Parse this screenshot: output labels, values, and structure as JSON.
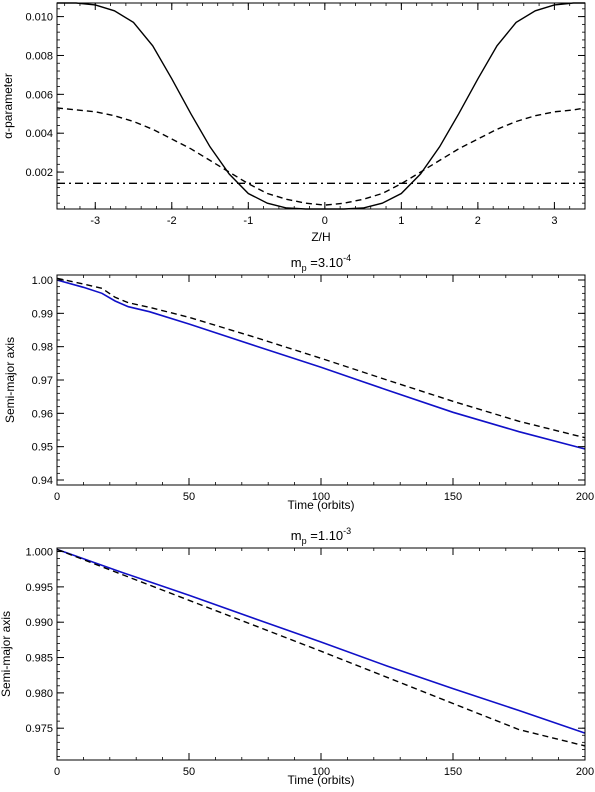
{
  "chart_data": [
    {
      "type": "line",
      "title": "",
      "xlabel": "Z/H",
      "ylabel": "α-parameter",
      "xlim": [
        -3.5,
        3.4
      ],
      "ylim": [
        0.0001,
        0.0107
      ],
      "xticks": [
        -3,
        -2,
        -1,
        0,
        1,
        2,
        3
      ],
      "yticks": [
        0.002,
        0.004,
        0.006,
        0.008,
        0.01
      ],
      "xtick_labels": [
        "-3",
        "-2",
        "-1",
        "0",
        "1",
        "2",
        "3"
      ],
      "ytick_labels": [
        "0.002",
        "0.004",
        "0.006",
        "0.008",
        "0.010"
      ],
      "series": [
        {
          "style": "solid",
          "color": "#000000",
          "x": [
            -3.5,
            -3.25,
            -3.0,
            -2.75,
            -2.5,
            -2.25,
            -2.0,
            -1.75,
            -1.5,
            -1.25,
            -1.0,
            -0.75,
            -0.5,
            -0.25,
            0,
            0.25,
            0.5,
            0.75,
            1.0,
            1.25,
            1.5,
            1.75,
            2.0,
            2.25,
            2.5,
            2.75,
            3.0,
            3.25,
            3.4
          ],
          "y": [
            0.0107,
            0.0107,
            0.0106,
            0.0103,
            0.0097,
            0.0085,
            0.0068,
            0.005,
            0.0033,
            0.0019,
            0.0009,
            0.0004,
            0.00015,
            0.0001,
            0.0001,
            0.0001,
            0.00015,
            0.0004,
            0.0009,
            0.0019,
            0.0033,
            0.005,
            0.0068,
            0.0085,
            0.0097,
            0.0103,
            0.0106,
            0.0107,
            0.0107
          ]
        },
        {
          "style": "dashed",
          "color": "#000000",
          "x": [
            -3.5,
            -3.25,
            -3.0,
            -2.75,
            -2.5,
            -2.25,
            -2.0,
            -1.75,
            -1.5,
            -1.25,
            -1.0,
            -0.75,
            -0.5,
            -0.25,
            0,
            0.25,
            0.5,
            0.75,
            1.0,
            1.25,
            1.5,
            1.75,
            2.0,
            2.25,
            2.5,
            2.75,
            3.0,
            3.25,
            3.4
          ],
          "y": [
            0.0053,
            0.0052,
            0.0051,
            0.0049,
            0.0046,
            0.0042,
            0.0037,
            0.0032,
            0.0026,
            0.002,
            0.0014,
            0.0009,
            0.0006,
            0.0004,
            0.0003,
            0.0004,
            0.0006,
            0.0009,
            0.0014,
            0.002,
            0.0026,
            0.0032,
            0.0037,
            0.0042,
            0.0046,
            0.0049,
            0.0051,
            0.0052,
            0.0053
          ]
        },
        {
          "style": "dashdot",
          "color": "#000000",
          "x": [
            -3.5,
            3.4
          ],
          "y": [
            0.00142,
            0.00142
          ]
        }
      ]
    },
    {
      "type": "line",
      "title_base": "m",
      "title_sub": "p",
      "title_mid": "=3.10",
      "title_sup": "-4",
      "xlabel": "Time (orbits)",
      "ylabel": "Semi-major axis",
      "xlim": [
        0,
        200
      ],
      "ylim": [
        0.9385,
        1.0015
      ],
      "xticks": [
        0,
        50,
        100,
        150,
        200
      ],
      "yticks": [
        0.94,
        0.95,
        0.96,
        0.97,
        0.98,
        0.99,
        1.0
      ],
      "xtick_labels": [
        "0",
        "50",
        "100",
        "150",
        "200"
      ],
      "ytick_labels": [
        "0.94",
        "0.95",
        "0.96",
        "0.97",
        "0.98",
        "0.99",
        "1.00"
      ],
      "series": [
        {
          "style": "solid",
          "color": "#1010c8",
          "x": [
            0,
            10,
            17,
            22,
            27,
            35,
            50,
            75,
            100,
            125,
            150,
            175,
            200
          ],
          "y": [
            1.0,
            0.9978,
            0.996,
            0.9937,
            0.992,
            0.9905,
            0.9868,
            0.9803,
            0.9738,
            0.967,
            0.9603,
            0.9545,
            0.9493
          ]
        },
        {
          "style": "dashed",
          "color": "#000000",
          "x": [
            0,
            10,
            17,
            22,
            27,
            35,
            50,
            75,
            100,
            125,
            150,
            175,
            200
          ],
          "y": [
            1.0005,
            0.9988,
            0.9975,
            0.9948,
            0.9932,
            0.9918,
            0.9888,
            0.9828,
            0.9765,
            0.97,
            0.9636,
            0.9576,
            0.9527
          ]
        }
      ]
    },
    {
      "type": "line",
      "title_base": "m",
      "title_sub": "p",
      "title_mid": "=1.10",
      "title_sup": "-3",
      "xlabel": "Time (orbits)",
      "ylabel": "Semi-major axis",
      "xlim": [
        0,
        200
      ],
      "ylim": [
        0.9705,
        1.0005
      ],
      "xticks": [
        0,
        50,
        100,
        150,
        200
      ],
      "yticks": [
        0.975,
        0.98,
        0.985,
        0.99,
        0.995,
        1.0
      ],
      "xtick_labels": [
        "0",
        "50",
        "100",
        "150",
        "200"
      ],
      "ytick_labels": [
        "0.975",
        "0.980",
        "0.985",
        "0.990",
        "0.995",
        "1.000"
      ],
      "series": [
        {
          "style": "solid",
          "color": "#1010c8",
          "x": [
            0,
            25,
            50,
            75,
            100,
            125,
            150,
            175,
            200
          ],
          "y": [
            1.0003,
            0.997,
            0.9938,
            0.9905,
            0.9872,
            0.9838,
            0.9806,
            0.9775,
            0.9743
          ]
        },
        {
          "style": "dashed",
          "color": "#000000",
          "x": [
            0,
            25,
            50,
            75,
            100,
            125,
            150,
            175,
            200
          ],
          "y": [
            1.0003,
            0.9967,
            0.9931,
            0.9895,
            0.9859,
            0.9822,
            0.9785,
            0.9748,
            0.9725
          ]
        }
      ]
    }
  ]
}
